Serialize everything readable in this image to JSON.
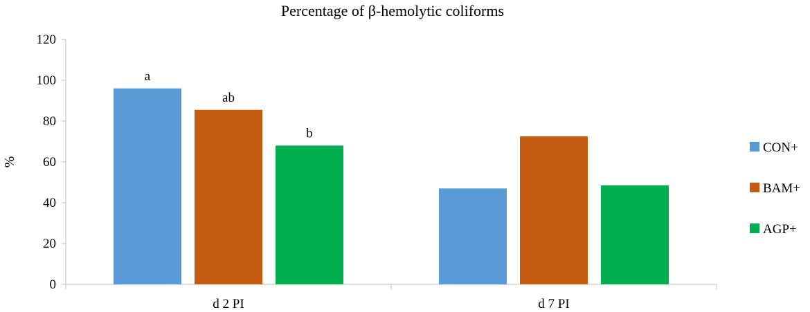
{
  "chart_data": {
    "type": "bar",
    "title": "Percentage of β-hemolytic coliforms",
    "xlabel": "",
    "ylabel": "%",
    "ylim": [
      0,
      120
    ],
    "yticks": [
      0,
      20,
      40,
      60,
      80,
      100,
      120
    ],
    "grid": false,
    "legend_position": "right",
    "categories": [
      "d 2 PI",
      "d 7 PI"
    ],
    "series": [
      {
        "name": "CON+",
        "color": "#5B9BD5",
        "values": [
          96,
          47
        ],
        "annotations": [
          "a",
          ""
        ]
      },
      {
        "name": "BAM+",
        "color": "#C55A11",
        "values": [
          85.5,
          72.5
        ],
        "annotations": [
          "ab",
          ""
        ]
      },
      {
        "name": "AGP+",
        "color": "#00B050",
        "values": [
          68,
          48.5
        ],
        "annotations": [
          "b",
          ""
        ]
      }
    ]
  }
}
